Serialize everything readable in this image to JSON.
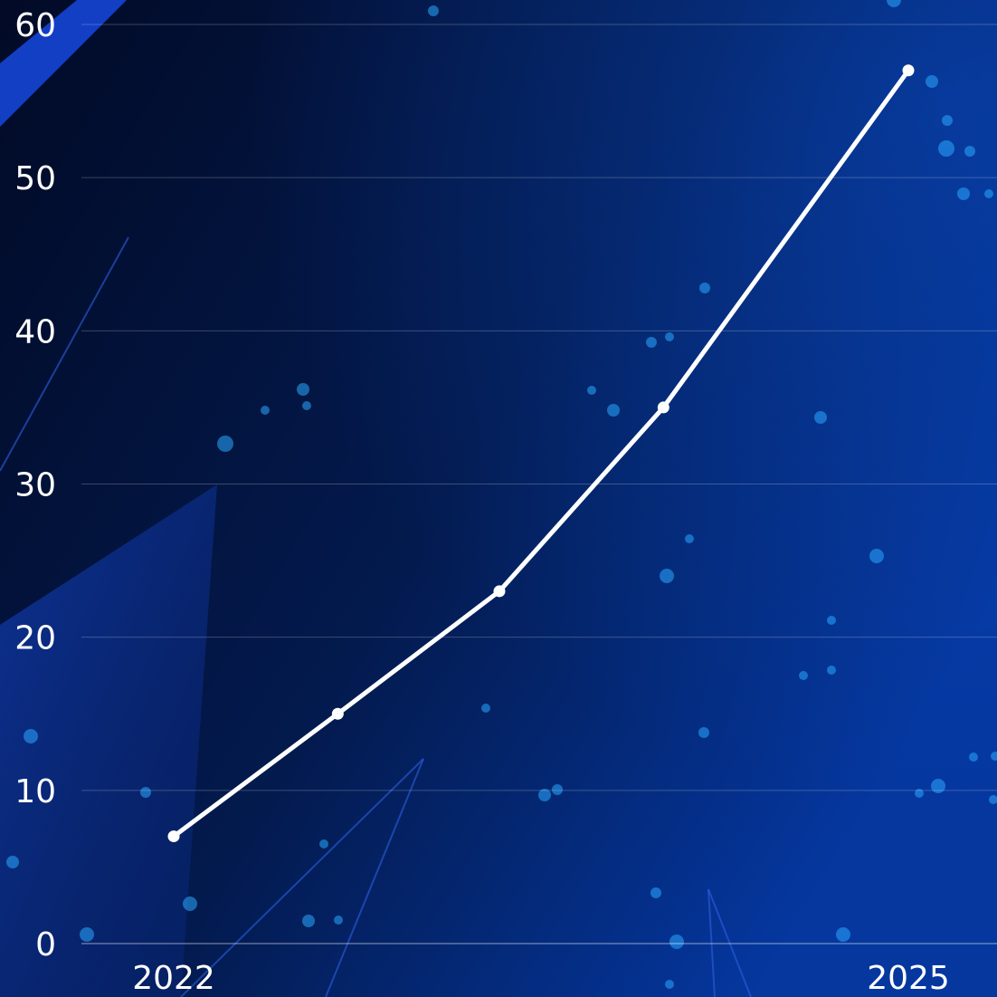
{
  "chart_data": {
    "type": "line",
    "x": [
      2022,
      2022.67,
      2023.33,
      2024,
      2025
    ],
    "x_tick_labels": [
      "2022",
      "2025"
    ],
    "y_tick_labels": [
      "0",
      "10",
      "20",
      "30",
      "40",
      "50",
      "60"
    ],
    "ylim": [
      0,
      60
    ],
    "grid": true,
    "series": [
      {
        "values": [
          7,
          15,
          23,
          35,
          57
        ]
      }
    ],
    "colors": {
      "line": "#ffffff",
      "background_start": "#020b2a",
      "background_end": "#05339a",
      "accent": "#1240c4",
      "dots": "#2aa8ff"
    }
  }
}
